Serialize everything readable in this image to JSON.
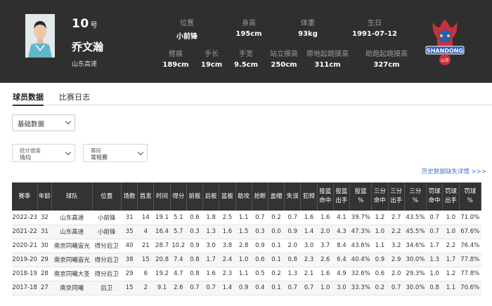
{
  "player": {
    "number": "10",
    "number_suffix": "号",
    "name": "乔文瀚",
    "team": "山东高速"
  },
  "stats_top": [
    {
      "label": "位置",
      "value": "小前锋"
    },
    {
      "label": "身高",
      "value": "195cm"
    },
    {
      "label": "体重",
      "value": "93kg"
    },
    {
      "label": "生日",
      "value": "1991-07-12"
    }
  ],
  "stats_bottom": [
    {
      "label": "臂展",
      "value": "189cm"
    },
    {
      "label": "手长",
      "value": "19cm"
    },
    {
      "label": "手宽",
      "value": "9.5cm"
    },
    {
      "label": "站立摸高",
      "value": "250cm"
    },
    {
      "label": "原地起跳摸高",
      "value": "311cm"
    },
    {
      "label": "助跑起跳摸高",
      "value": "327cm"
    }
  ],
  "logo": {
    "text": "SHANDONG",
    "sub": "山东",
    "color": "#c8313a",
    "accent": "#2a5db0"
  },
  "tabs": [
    "球员数据",
    "比赛日志"
  ],
  "data_type_select": "基础数据",
  "filters": [
    {
      "label": "统计维度",
      "value": "场均"
    },
    {
      "label": "赛段",
      "value": "常规赛"
    }
  ],
  "history_link": "历史数据缺失详情 >>>",
  "table": {
    "headers": [
      "赛季",
      "年龄",
      "球队",
      "位置",
      "场数",
      "首发",
      "时间",
      "得分",
      "前板",
      "后板",
      "篮板",
      "助攻",
      "抢断",
      "盖帽",
      "失误",
      "犯规",
      "投篮\n命中",
      "投篮\n出手",
      "投篮\n%",
      "三分\n命中",
      "三分\n出手",
      "三分\n%",
      "罚球\n命中",
      "罚球\n出手",
      "罚球\n%"
    ],
    "rows": [
      [
        "2022-23",
        "32",
        "山东高速",
        "小前锋",
        "31",
        "14",
        "19.1",
        "5.1",
        "0.6",
        "1.8",
        "2.5",
        "1.1",
        "0.7",
        "0.2",
        "0.7",
        "1.6",
        "1.6",
        "4.1",
        "39.7%",
        "1.2",
        "2.7",
        "43.5%",
        "0.7",
        "1.0",
        "71.0%"
      ],
      [
        "2021-22",
        "31",
        "山东高速",
        "小前锋",
        "35",
        "4",
        "16.4",
        "5.7",
        "0.3",
        "1.3",
        "1.6",
        "1.5",
        "0.3",
        "0.0",
        "0.9",
        "1.4",
        "2.0",
        "4.3",
        "47.3%",
        "1.0",
        "2.2",
        "45.5%",
        "0.7",
        "1.0",
        "67.6%"
      ],
      [
        "2020-21",
        "30",
        "南京同曦宙光",
        "得分后卫",
        "40",
        "21",
        "28.7",
        "10.2",
        "0.9",
        "3.0",
        "3.8",
        "2.8",
        "0.9",
        "0.1",
        "2.0",
        "3.0",
        "3.7",
        "8.4",
        "43.6%",
        "1.1",
        "3.2",
        "34.6%",
        "1.7",
        "2.2",
        "76.4%"
      ],
      [
        "2019-20",
        "29",
        "南京同曦宙光",
        "得分后卫",
        "38",
        "15",
        "20.8",
        "7.4",
        "0.8",
        "1.7",
        "2.4",
        "1.0",
        "0.6",
        "0.1",
        "0.8",
        "2.3",
        "2.6",
        "6.4",
        "40.4%",
        "0.9",
        "2.9",
        "30.0%",
        "1.3",
        "1.7",
        "77.8%"
      ],
      [
        "2018-19",
        "28",
        "南京同曦大圣",
        "得分后卫",
        "29",
        "6",
        "19.2",
        "4.7",
        "0.8",
        "1.6",
        "2.3",
        "1.1",
        "0.5",
        "0.2",
        "1.3",
        "2.1",
        "1.6",
        "4.9",
        "32.6%",
        "0.6",
        "2.0",
        "29.3%",
        "1.0",
        "1.2",
        "77.8%"
      ],
      [
        "2017-18",
        "27",
        "南京同曦",
        "后卫",
        "15",
        "2",
        "9.1",
        "2.6",
        "0.7",
        "0.7",
        "1.4",
        "0.9",
        "0.4",
        "0.1",
        "0.7",
        "0.7",
        "1.0",
        "3.0",
        "33.3%",
        "0.2",
        "0.7",
        "30.0%",
        "0.8",
        "1.1",
        "70.6%"
      ]
    ]
  }
}
